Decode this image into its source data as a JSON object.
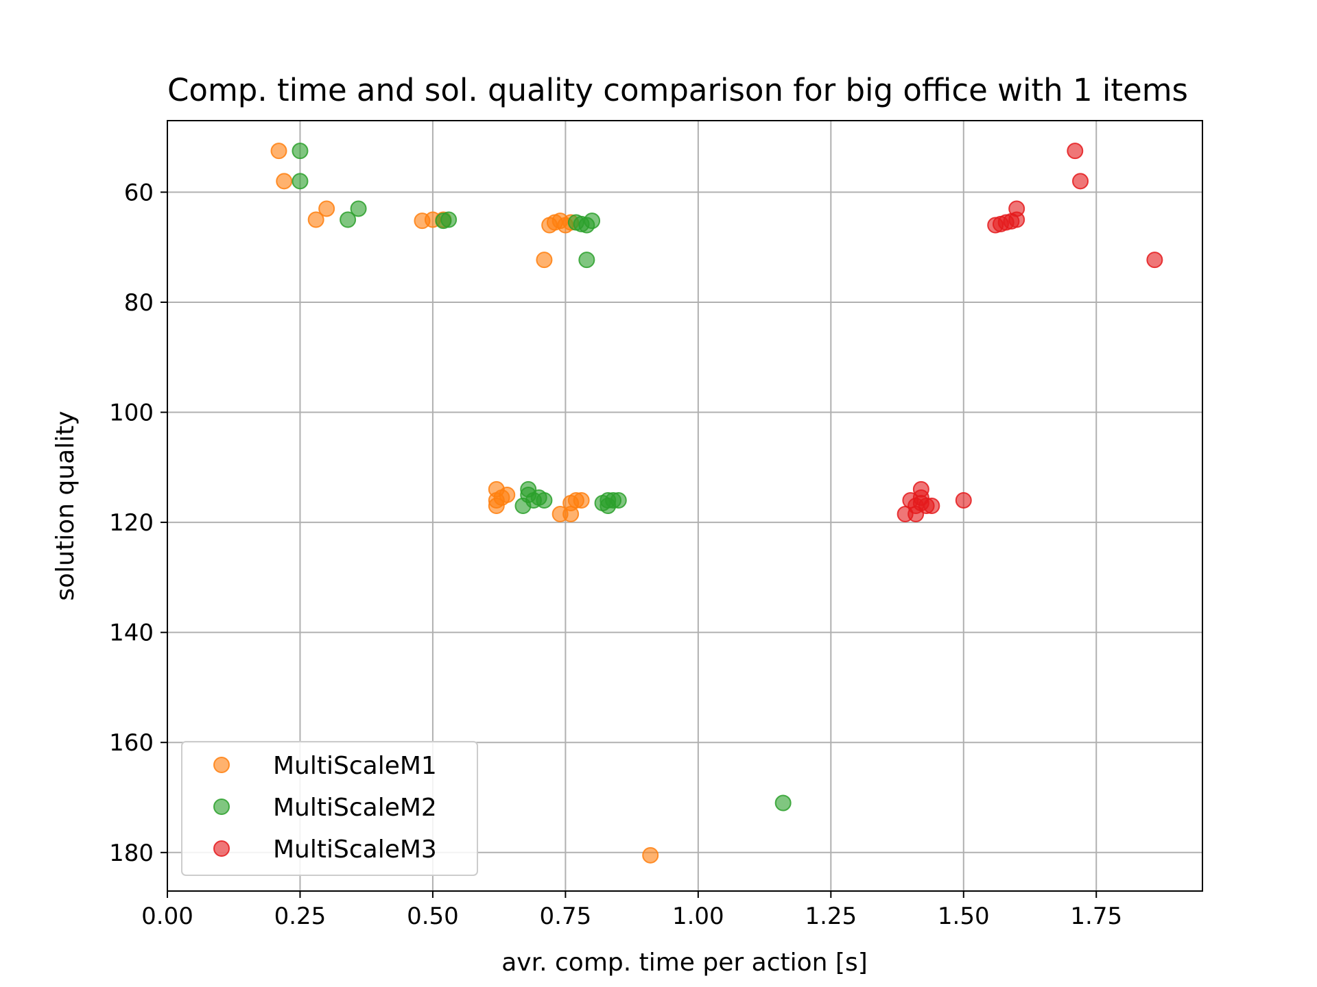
{
  "chart_data": {
    "type": "scatter",
    "title": "Comp. time and sol. quality comparison for big office with 1 items",
    "xlabel": "avr. comp. time per action [s]",
    "ylabel": "solution quality",
    "xlim": [
      0.0,
      1.95
    ],
    "ylim": [
      187,
      47
    ],
    "y_inverted": true,
    "xticks": [
      0.0,
      0.25,
      0.5,
      0.75,
      1.0,
      1.25,
      1.5,
      1.75
    ],
    "xtick_labels": [
      "0.00",
      "0.25",
      "0.50",
      "0.75",
      "1.00",
      "1.25",
      "1.50",
      "1.75"
    ],
    "yticks": [
      60,
      80,
      100,
      120,
      140,
      160,
      180
    ],
    "ytick_labels": [
      "60",
      "80",
      "100",
      "120",
      "140",
      "160",
      "180"
    ],
    "grid": true,
    "legend_position": "lower-left",
    "series": [
      {
        "name": "MultiScaleM1",
        "color": "#ff7f0e",
        "points": [
          [
            0.21,
            52.5
          ],
          [
            0.22,
            58.0
          ],
          [
            0.28,
            65.0
          ],
          [
            0.3,
            63.0
          ],
          [
            0.48,
            65.2
          ],
          [
            0.5,
            65.0
          ],
          [
            0.52,
            65.0
          ],
          [
            0.71,
            72.3
          ],
          [
            0.72,
            66.0
          ],
          [
            0.73,
            65.5
          ],
          [
            0.74,
            65.2
          ],
          [
            0.75,
            66.0
          ],
          [
            0.76,
            65.5
          ],
          [
            0.62,
            114.0
          ],
          [
            0.62,
            116.0
          ],
          [
            0.62,
            117.0
          ],
          [
            0.63,
            115.5
          ],
          [
            0.64,
            115.0
          ],
          [
            0.74,
            118.5
          ],
          [
            0.76,
            116.5
          ],
          [
            0.76,
            118.5
          ],
          [
            0.77,
            116.0
          ],
          [
            0.78,
            116.0
          ],
          [
            0.91,
            180.5
          ]
        ]
      },
      {
        "name": "MultiScaleM2",
        "color": "#2ca02c",
        "points": [
          [
            0.25,
            52.5
          ],
          [
            0.25,
            58.0
          ],
          [
            0.34,
            65.0
          ],
          [
            0.36,
            63.0
          ],
          [
            0.52,
            65.2
          ],
          [
            0.53,
            65.0
          ],
          [
            0.77,
            65.5
          ],
          [
            0.78,
            65.8
          ],
          [
            0.79,
            66.0
          ],
          [
            0.8,
            65.2
          ],
          [
            0.79,
            72.3
          ],
          [
            0.67,
            117.0
          ],
          [
            0.68,
            114.0
          ],
          [
            0.68,
            115.0
          ],
          [
            0.69,
            116.0
          ],
          [
            0.7,
            115.5
          ],
          [
            0.71,
            116.0
          ],
          [
            0.82,
            116.5
          ],
          [
            0.83,
            117.0
          ],
          [
            0.83,
            116.0
          ],
          [
            0.84,
            116.0
          ],
          [
            0.85,
            116.0
          ],
          [
            1.16,
            171.0
          ]
        ]
      },
      {
        "name": "MultiScaleM3",
        "color": "#e41a1c",
        "points": [
          [
            1.71,
            52.5
          ],
          [
            1.72,
            58.0
          ],
          [
            1.86,
            72.3
          ],
          [
            1.56,
            66.0
          ],
          [
            1.57,
            65.8
          ],
          [
            1.58,
            65.5
          ],
          [
            1.59,
            65.3
          ],
          [
            1.6,
            65.0
          ],
          [
            1.6,
            63.0
          ],
          [
            1.39,
            118.5
          ],
          [
            1.4,
            116.0
          ],
          [
            1.41,
            117.0
          ],
          [
            1.41,
            118.5
          ],
          [
            1.42,
            114.0
          ],
          [
            1.42,
            115.5
          ],
          [
            1.42,
            116.5
          ],
          [
            1.43,
            117.0
          ],
          [
            1.44,
            117.0
          ],
          [
            1.5,
            116.0
          ]
        ]
      }
    ]
  }
}
